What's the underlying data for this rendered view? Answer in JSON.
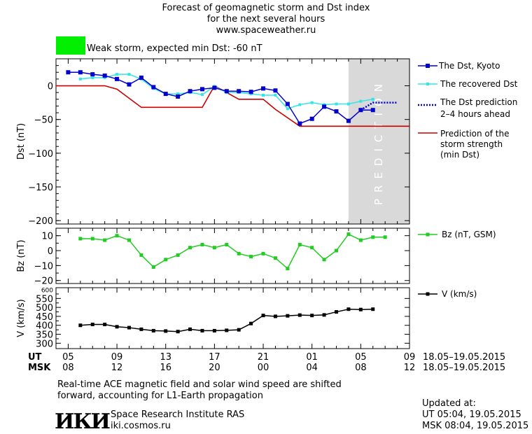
{
  "header": {
    "title_line1": "Forecast of geomagnetic storm and Dst index",
    "title_line2": "for the next several hours",
    "title_line3": "www.spaceweather.ru"
  },
  "status": {
    "text": "Weak storm, expected min Dst: -60 nT",
    "color": "#00ee00"
  },
  "colors": {
    "dst_kyoto": "#0000cc",
    "dst_recovered": "#33e5e5",
    "dst_prediction": "#0000cc",
    "storm_strength": "#cc0000",
    "bz": "#22cc22",
    "v": "#000000",
    "prediction_band": "#d9d9d9"
  },
  "chart_data": [
    {
      "type": "line",
      "id": "dst",
      "xlabel": "",
      "ylabel": "Dst (nT)",
      "ylim": [
        -205,
        40
      ],
      "yticks": [
        0,
        -50,
        -100,
        -150,
        -200
      ],
      "prediction_label": "PREDICTION",
      "series": [
        {
          "name": "The Dst, Kyoto",
          "x": [
            5,
            6,
            7,
            8,
            9,
            10,
            11,
            12,
            13,
            14,
            15,
            16,
            17,
            18,
            19,
            20,
            21,
            22,
            23,
            24,
            25,
            26,
            27,
            28,
            29,
            30
          ],
          "y": [
            20,
            20,
            17,
            15,
            10,
            2,
            12,
            -2,
            -12,
            -16,
            -8,
            -5,
            -3,
            -8,
            -8,
            -9,
            -4,
            -7,
            -27,
            -56,
            -49,
            -31,
            -38,
            -52,
            -36,
            -36
          ]
        },
        {
          "name": "The recovered Dst",
          "x": [
            6,
            7,
            8,
            9,
            10,
            11,
            12,
            13,
            14,
            15,
            16,
            17,
            18,
            19,
            20,
            21,
            22,
            23,
            24,
            25,
            26,
            27,
            28,
            29,
            30
          ],
          "y": [
            10,
            12,
            12,
            17,
            17,
            10,
            -4,
            -12,
            -12,
            -10,
            -13,
            -1,
            -10,
            -10,
            -12,
            -14,
            -14,
            -34,
            -28,
            -25,
            -28,
            -27,
            -27,
            -23,
            -20
          ]
        },
        {
          "name": "The Dst prediction 2–4 hours ahead",
          "x": [
            29,
            30,
            31,
            32
          ],
          "y": [
            -36,
            -25,
            -25,
            -25
          ]
        },
        {
          "name": "Prediction of the storm strength (min Dst)",
          "x": [
            4,
            8,
            9,
            11,
            16,
            17,
            19,
            21,
            22,
            24,
            33
          ],
          "y": [
            0,
            0,
            -5,
            -32,
            -32,
            0,
            -20,
            -20,
            -35,
            -60,
            -60
          ]
        }
      ]
    },
    {
      "type": "line",
      "id": "bz",
      "ylabel": "Bz (nT)",
      "ylim": [
        -22,
        15
      ],
      "yticks": [
        10,
        0,
        -10,
        -20
      ],
      "series": [
        {
          "name": "Bz (nT, GSM)",
          "x": [
            6,
            7,
            8,
            9,
            10,
            11,
            12,
            13,
            14,
            15,
            16,
            17,
            18,
            19,
            20,
            21,
            22,
            23,
            24,
            25,
            26,
            27,
            28,
            29,
            30,
            31
          ],
          "y": [
            8,
            8,
            7,
            10,
            7,
            -3,
            -11,
            -6,
            -3,
            2,
            4,
            2,
            4,
            -2,
            -4,
            -2,
            -5,
            -12,
            4,
            2,
            -6,
            0,
            11,
            7,
            9,
            9
          ]
        }
      ]
    },
    {
      "type": "line",
      "id": "v",
      "ylabel": "V (km/s)",
      "ylim": [
        270,
        610
      ],
      "yticks": [
        550,
        500,
        450,
        400,
        350,
        300
      ],
      "tick_labels": [
        "550",
        "500",
        "450",
        "400",
        "350",
        "300"
      ],
      "minor_tick_labels": [
        "600"
      ],
      "series": [
        {
          "name": "V (km/s)",
          "x": [
            6,
            7,
            8,
            9,
            10,
            11,
            12,
            13,
            14,
            15,
            16,
            17,
            18,
            19,
            20,
            21,
            22,
            23,
            24,
            25,
            26,
            27,
            28,
            29,
            30
          ],
          "y": [
            400,
            405,
            405,
            392,
            387,
            378,
            370,
            368,
            365,
            378,
            370,
            370,
            372,
            375,
            410,
            455,
            450,
            453,
            457,
            455,
            458,
            475,
            490,
            488,
            490
          ]
        }
      ]
    }
  ],
  "time_axis": {
    "ut_label": "UT",
    "msk_label": "MSK",
    "ut_ticks": [
      "05",
      "09",
      "13",
      "17",
      "21",
      "01",
      "05",
      "09"
    ],
    "msk_ticks": [
      "08",
      "12",
      "16",
      "20",
      "00",
      "04",
      "08",
      "12"
    ],
    "ut_date_range": "18.05–19.05.2015",
    "msk_date_range": "18.05–19.05.2015"
  },
  "legend": {
    "dst_kyoto": "The Dst, Kyoto",
    "dst_recovered": "The recovered Dst",
    "dst_prediction_line1": "The Dst prediction",
    "dst_prediction_line2": "2–4 hours ahead",
    "storm_line1": "Prediction of the",
    "storm_line2": "storm strength",
    "storm_line3": "(min Dst)",
    "bz": "Bz (nT, GSM)",
    "v": "V (km/s)"
  },
  "footer": {
    "note_line1": "Real-time ACE magnetic field and solar wind speed are shifted",
    "note_line2": "forward, accounting for L1-Earth propagation",
    "institute": "Space Research Institute RAS",
    "website": "iki.cosmos.ru",
    "logo_text": "ИКИ",
    "updated_label": "Updated at:",
    "updated_ut": "UT  05:04, 19.05.2015",
    "updated_msk": "MSK 08:04, 19.05.2015"
  }
}
